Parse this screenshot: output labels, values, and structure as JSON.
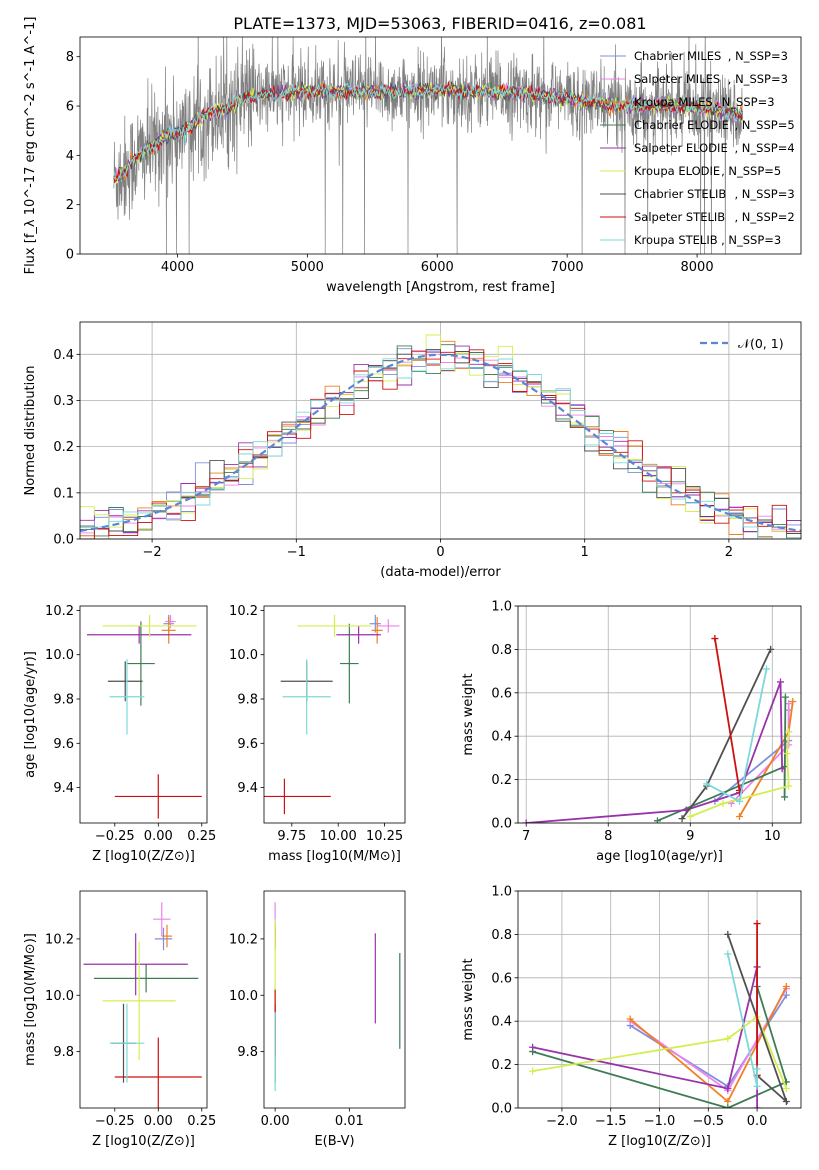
{
  "figure_title": "PLATE=1373, MJD=53063, FIBERID=0416, z=0.081",
  "colors": {
    "Chabrier MILES": "#7f8fe0",
    "Salpeter MILES": "#ee82ee",
    "Kroupa MILES": "#f07f20",
    "Chabrier ELODIE": "#3d7d55",
    "Salpeter ELODIE": "#9933aa",
    "Kroupa ELODIE": "#d4ee50",
    "Chabrier STELIB": "#505050",
    "Salpeter STELIB": "#cc1111",
    "Kroupa STELIB": "#7dd9d9",
    "data": "#808080",
    "gaussian": "#5b86d6",
    "grid": "#b0b0b0"
  },
  "chart_data": [
    {
      "id": "spectrum",
      "type": "line",
      "title": "PLATE=1373, MJD=53063, FIBERID=0416, z=0.081",
      "xlabel": "wavelength [Angstrom, rest frame]",
      "ylabel": "Flux [f_λ 10^-17 erg cm^-2 s^-1 A^-1]",
      "xlim": [
        3250,
        8800
      ],
      "ylim": [
        0,
        8.8
      ],
      "xticks": [
        4000,
        5000,
        6000,
        7000,
        8000
      ],
      "yticks": [
        0,
        2,
        4,
        6,
        8
      ],
      "grid": false,
      "legend": "right",
      "legend_entries": [
        {
          "name": "Chabrier MILES",
          "nssp": "3"
        },
        {
          "name": "Salpeter MILES",
          "nssp": "3"
        },
        {
          "name": "Kroupa MILES",
          "nssp": "3"
        },
        {
          "name": "Chabrier ELODIE",
          "nssp": "5"
        },
        {
          "name": "Salpeter ELODIE",
          "nssp": "4"
        },
        {
          "name": "Kroupa ELODIE",
          "nssp": "5"
        },
        {
          "name": "Chabrier STELIB",
          "nssp": "3"
        },
        {
          "name": "Salpeter STELIB",
          "nssp": "2"
        },
        {
          "name": "Kroupa STELIB",
          "nssp": "3"
        }
      ],
      "continuum": {
        "x": [
          3510,
          3600,
          3700,
          3800,
          3900,
          4000,
          4100,
          4200,
          4300,
          4400,
          4500,
          4600,
          4700,
          4800,
          5000,
          5200,
          5500,
          5800,
          6000,
          6200,
          6400,
          6600,
          6800,
          7000,
          7200,
          7400,
          7600,
          7800,
          8000,
          8200,
          8350
        ],
        "y": [
          3.0,
          3.4,
          4.0,
          4.3,
          4.8,
          4.9,
          5.2,
          5.6,
          5.8,
          5.9,
          6.3,
          6.4,
          6.5,
          6.5,
          6.6,
          6.6,
          6.55,
          6.6,
          6.65,
          6.6,
          6.55,
          6.55,
          6.45,
          6.3,
          6.15,
          6.05,
          6.0,
          6.0,
          5.95,
          5.8,
          5.6
        ]
      }
    },
    {
      "id": "residuals",
      "type": "histogram",
      "xlabel": "(data-model)/error",
      "ylabel": "Normed distribution",
      "xlim": [
        -2.5,
        2.5
      ],
      "ylim": [
        0,
        0.47
      ],
      "xticks": [
        -2,
        -1,
        0,
        1,
        2
      ],
      "xtick_labels": [
        "−2",
        "−1",
        "0",
        "1",
        "2"
      ],
      "yticks": [
        0.0,
        0.1,
        0.2,
        0.3,
        0.4
      ],
      "ytick_labels": [
        "0.0",
        "0.1",
        "0.2",
        "0.3",
        "0.4"
      ],
      "grid": true,
      "legend": "top-right",
      "gaussian_label": "𝒩(0, 1)",
      "bin_width": 0.1
    },
    {
      "id": "age_vs_Z",
      "type": "errorbar",
      "xlabel": "Z [log10(Z/Z⊙)]",
      "ylabel": "age [log10(age/yr)]",
      "xlim": [
        -0.45,
        0.28
      ],
      "ylim": [
        9.24,
        10.22
      ],
      "xticks": [
        -0.25,
        0.0,
        0.25
      ],
      "xtick_labels": [
        "−0.25",
        "0.00",
        "0.25"
      ],
      "yticks": [
        9.4,
        9.6,
        9.8,
        10.0,
        10.2
      ],
      "ytick_labels": [
        "9.4",
        "9.6",
        "9.8",
        "10.0",
        "10.2"
      ],
      "grid": false,
      "points": [
        {
          "model": "Chabrier MILES",
          "x": 0.06,
          "xerr": 0.03,
          "y": 10.14,
          "yerr": 0.04
        },
        {
          "model": "Salpeter MILES",
          "x": 0.07,
          "xerr": 0.03,
          "y": 10.15,
          "yerr": 0.03
        },
        {
          "model": "Kroupa MILES",
          "x": 0.06,
          "xerr": 0.04,
          "y": 10.11,
          "yerr": 0.06
        },
        {
          "model": "Chabrier ELODIE",
          "x": -0.1,
          "xerr": 0.08,
          "y": 9.96,
          "yerr": 0.19
        },
        {
          "model": "Salpeter ELODIE",
          "x": -0.11,
          "xerr": 0.3,
          "y": 10.09,
          "yerr": 0.04
        },
        {
          "model": "Kroupa ELODIE",
          "x": -0.05,
          "xerr": 0.27,
          "y": 10.13,
          "yerr": 0.05
        },
        {
          "model": "Chabrier STELIB",
          "x": -0.19,
          "xerr": 0.1,
          "y": 9.88,
          "yerr": 0.09
        },
        {
          "model": "Salpeter STELIB",
          "x": 0.0,
          "xerr": 0.25,
          "y": 9.36,
          "yerr": 0.1
        },
        {
          "model": "Kroupa STELIB",
          "x": -0.18,
          "xerr": 0.1,
          "y": 9.81,
          "yerr": 0.17
        }
      ]
    },
    {
      "id": "age_vs_mass",
      "type": "errorbar",
      "xlabel": "mass [log10(M/M⊙)]",
      "ylabel": "",
      "xlim": [
        9.6,
        10.36
      ],
      "ylim": [
        9.24,
        10.22
      ],
      "xticks": [
        9.75,
        10.0,
        10.25
      ],
      "xtick_labels": [
        "9.75",
        "10.00",
        "10.25"
      ],
      "yticks": [
        9.4,
        9.6,
        9.8,
        10.0,
        10.2
      ],
      "ytick_labels": [
        "9.4",
        "9.6",
        "9.8",
        "10.0",
        "10.2"
      ],
      "grid": false,
      "points": [
        {
          "model": "Chabrier MILES",
          "x": 10.2,
          "xerr": 0.03,
          "y": 10.14,
          "yerr": 0.04
        },
        {
          "model": "Salpeter MILES",
          "x": 10.27,
          "xerr": 0.06,
          "y": 10.13,
          "yerr": 0.03
        },
        {
          "model": "Kroupa MILES",
          "x": 10.21,
          "xerr": 0.03,
          "y": 10.11,
          "yerr": 0.06
        },
        {
          "model": "Chabrier ELODIE",
          "x": 10.06,
          "xerr": 0.05,
          "y": 9.96,
          "yerr": 0.18
        },
        {
          "model": "Salpeter ELODIE",
          "x": 10.11,
          "xerr": 0.12,
          "y": 10.09,
          "yerr": 0.04
        },
        {
          "model": "Kroupa ELODIE",
          "x": 9.98,
          "xerr": 0.2,
          "y": 10.13,
          "yerr": 0.05
        },
        {
          "model": "Chabrier STELIB",
          "x": 9.83,
          "xerr": 0.14,
          "y": 9.88,
          "yerr": 0.09
        },
        {
          "model": "Salpeter STELIB",
          "x": 9.71,
          "xerr": 0.25,
          "y": 9.36,
          "yerr": 0.08
        },
        {
          "model": "Kroupa STELIB",
          "x": 9.83,
          "xerr": 0.13,
          "y": 9.81,
          "yerr": 0.17
        }
      ]
    },
    {
      "id": "weight_vs_age",
      "type": "line",
      "xlabel": "age [log10(age/yr)]",
      "ylabel": "mass weight",
      "xlim": [
        6.9,
        10.35
      ],
      "ylim": [
        0,
        1.0
      ],
      "xticks": [
        7,
        8,
        9,
        10
      ],
      "yticks": [
        0.0,
        0.2,
        0.4,
        0.6,
        0.8,
        1.0
      ],
      "ytick_labels": [
        "0.0",
        "0.2",
        "0.4",
        "0.6",
        "0.8",
        "1.0"
      ],
      "grid": true,
      "series": [
        {
          "model": "Chabrier MILES",
          "x": [
            9.3,
            10.2,
            10.2
          ],
          "y": [
            0.1,
            0.38,
            0.52
          ]
        },
        {
          "model": "Salpeter MILES",
          "x": [
            9.5,
            10.2,
            10.2
          ],
          "y": [
            0.09,
            0.36,
            0.55
          ]
        },
        {
          "model": "Kroupa MILES",
          "x": [
            9.6,
            10.2,
            10.25
          ],
          "y": [
            0.03,
            0.42,
            0.56
          ]
        },
        {
          "model": "Chabrier ELODIE",
          "x": [
            8.6,
            10.15,
            10.15,
            10.16
          ],
          "y": [
            0.01,
            0.26,
            0.12,
            0.58
          ]
        },
        {
          "model": "Salpeter ELODIE",
          "x": [
            7.0,
            8.95,
            9.6,
            10.1,
            10.12
          ],
          "y": [
            0.0,
            0.06,
            0.14,
            0.65,
            0.25
          ]
        },
        {
          "model": "Kroupa ELODIE",
          "x": [
            9.0,
            9.4,
            10.2,
            10.18,
            10.2
          ],
          "y": [
            0.03,
            0.09,
            0.17,
            0.32,
            0.42
          ]
        },
        {
          "model": "Chabrier STELIB",
          "x": [
            8.9,
            9.2,
            9.98
          ],
          "y": [
            0.02,
            0.17,
            0.8
          ]
        },
        {
          "model": "Salpeter STELIB",
          "x": [
            9.3,
            9.6
          ],
          "y": [
            0.85,
            0.15
          ]
        },
        {
          "model": "Kroupa STELIB",
          "x": [
            9.2,
            9.6,
            9.93
          ],
          "y": [
            0.18,
            0.1,
            0.71
          ]
        }
      ]
    },
    {
      "id": "mass_vs_Z",
      "type": "errorbar",
      "xlabel": "Z [log10(Z/Z⊙)]",
      "ylabel": "mass [log10(M/M⊙)]",
      "xlim": [
        -0.45,
        0.28
      ],
      "ylim": [
        9.6,
        10.37
      ],
      "xticks": [
        -0.25,
        0.0,
        0.25
      ],
      "xtick_labels": [
        "−0.25",
        "0.00",
        "0.25"
      ],
      "yticks": [
        9.8,
        10.0,
        10.2
      ],
      "ytick_labels": [
        "9.8",
        "10.0",
        "10.2"
      ],
      "grid": false,
      "points": [
        {
          "model": "Chabrier MILES",
          "x": 0.03,
          "xerr": 0.05,
          "y": 10.2,
          "yerr": 0.04
        },
        {
          "model": "Salpeter MILES",
          "x": 0.02,
          "xerr": 0.05,
          "y": 10.27,
          "yerr": 0.06
        },
        {
          "model": "Kroupa MILES",
          "x": 0.05,
          "xerr": 0.03,
          "y": 10.21,
          "yerr": 0.04
        },
        {
          "model": "Chabrier ELODIE",
          "x": -0.07,
          "xerr": 0.3,
          "y": 10.06,
          "yerr": 0.05
        },
        {
          "model": "Salpeter ELODIE",
          "x": -0.13,
          "xerr": 0.3,
          "y": 10.11,
          "yerr": 0.11
        },
        {
          "model": "Kroupa ELODIE",
          "x": -0.11,
          "xerr": 0.21,
          "y": 9.98,
          "yerr": 0.21
        },
        {
          "model": "Chabrier STELIB",
          "x": -0.2,
          "xerr": 0.07,
          "y": 9.83,
          "yerr": 0.14
        },
        {
          "model": "Salpeter STELIB",
          "x": 0.0,
          "xerr": 0.25,
          "y": 9.71,
          "yerr": 0.14
        },
        {
          "model": "Kroupa STELIB",
          "x": -0.18,
          "xerr": 0.1,
          "y": 9.83,
          "yerr": 0.14
        }
      ]
    },
    {
      "id": "mass_vs_EBV",
      "type": "errorbar",
      "xlabel": "E(B-V)",
      "ylabel": "",
      "xlim": [
        -0.0015,
        0.0175
      ],
      "ylim": [
        9.6,
        10.37
      ],
      "xticks": [
        0.0,
        0.01
      ],
      "xtick_labels": [
        "0.00",
        "0.01"
      ],
      "yticks": [
        9.8,
        10.0,
        10.2
      ],
      "ytick_labels": [
        "9.8",
        "10.0",
        "10.2"
      ],
      "grid": false,
      "points": [
        {
          "model": "Chabrier MILES",
          "x": 0.0,
          "xerr": 0.0,
          "y": 10.2,
          "yerr": 0.04
        },
        {
          "model": "Salpeter MILES",
          "x": 0.0,
          "xerr": 0.0,
          "y": 10.27,
          "yerr": 0.06
        },
        {
          "model": "Kroupa MILES",
          "x": 0.0,
          "xerr": 0.0,
          "y": 10.21,
          "yerr": 0.04
        },
        {
          "model": "Chabrier ELODIE",
          "x": 0.0168,
          "xerr": 0.0,
          "y": 9.98,
          "yerr": 0.17
        },
        {
          "model": "Salpeter ELODIE",
          "x": 0.0135,
          "xerr": 0.0,
          "y": 10.06,
          "yerr": 0.16
        },
        {
          "model": "Kroupa ELODIE",
          "x": 0.0,
          "xerr": 0.0,
          "y": 10.05,
          "yerr": 0.22
        },
        {
          "model": "Chabrier STELIB",
          "x": 0.0,
          "xerr": 0.0,
          "y": 9.83,
          "yerr": 0.14
        },
        {
          "model": "Salpeter STELIB",
          "x": 0.0,
          "xerr": 0.0,
          "y": 9.9,
          "yerr": 0.12
        },
        {
          "model": "Kroupa STELIB",
          "x": 0.0,
          "xerr": 0.0,
          "y": 9.8,
          "yerr": 0.14
        }
      ]
    },
    {
      "id": "weight_vs_Z",
      "type": "line",
      "xlabel": "Z [log10(Z/Z⊙)]",
      "ylabel": "mass weight",
      "xlim": [
        -2.45,
        0.45
      ],
      "ylim": [
        0,
        1.0
      ],
      "xticks": [
        -2.0,
        -1.5,
        -1.0,
        -0.5,
        0.0
      ],
      "xtick_labels": [
        "−2.0",
        "−1.5",
        "−1.0",
        "−0.5",
        "0.0"
      ],
      "yticks": [
        0.0,
        0.2,
        0.4,
        0.6,
        0.8,
        1.0
      ],
      "ytick_labels": [
        "0.0",
        "0.2",
        "0.4",
        "0.6",
        "0.8",
        "1.0"
      ],
      "grid": true,
      "series": [
        {
          "model": "Chabrier MILES",
          "x": [
            -1.3,
            -0.3,
            0.3
          ],
          "y": [
            0.38,
            0.1,
            0.52
          ]
        },
        {
          "model": "Salpeter MILES",
          "x": [
            -1.3,
            -0.3,
            0.3
          ],
          "y": [
            0.4,
            0.08,
            0.55
          ]
        },
        {
          "model": "Kroupa MILES",
          "x": [
            -1.3,
            -0.3,
            0.3
          ],
          "y": [
            0.41,
            0.03,
            0.56
          ]
        },
        {
          "model": "Chabrier ELODIE",
          "x": [
            -2.3,
            -0.3,
            0.3,
            0.0
          ],
          "y": [
            0.26,
            0.0,
            0.12,
            0.56
          ]
        },
        {
          "model": "Salpeter ELODIE",
          "x": [
            -2.3,
            -0.3,
            0.0,
            0.0
          ],
          "y": [
            0.28,
            0.09,
            0.65,
            0.0
          ]
        },
        {
          "model": "Kroupa ELODIE",
          "x": [
            -2.3,
            -0.3,
            0.0,
            0.3
          ],
          "y": [
            0.17,
            0.32,
            0.42,
            0.09
          ]
        },
        {
          "model": "Chabrier STELIB",
          "x": [
            -0.3,
            0.3,
            0.0
          ],
          "y": [
            0.8,
            0.03,
            0.15
          ]
        },
        {
          "model": "Salpeter STELIB",
          "x": [
            0.0,
            0.0
          ],
          "y": [
            0.85,
            0.15
          ]
        },
        {
          "model": "Kroupa STELIB",
          "x": [
            -0.3,
            0.0,
            0.0
          ],
          "y": [
            0.71,
            0.1,
            0.18
          ]
        }
      ]
    }
  ]
}
